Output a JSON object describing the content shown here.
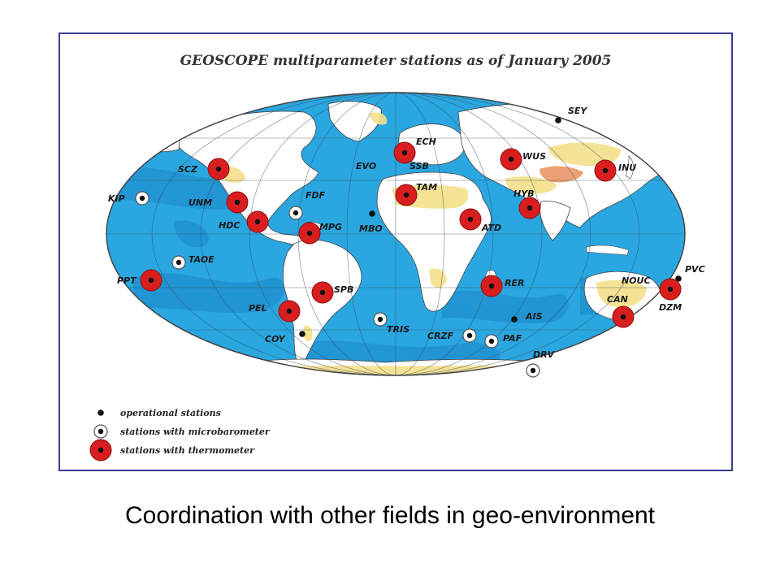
{
  "title": "GEOSCOPE multiparameter stations as of January 2005",
  "caption": "Coordination with other fields in geo-environment",
  "colors": {
    "ocean": "#2aa6e0",
    "land": "#ffffff",
    "desert": "#f4e08a",
    "thermometer": "#d81e1e",
    "operational": "#111111",
    "frame": "#3a3f8f"
  },
  "legend": [
    {
      "type": "operational",
      "label": "operational stations"
    },
    {
      "type": "microbarometer",
      "label": "stations with microbarometer"
    },
    {
      "type": "thermometer",
      "label": "stations with thermometer"
    }
  ],
  "stations": [
    {
      "code": "SCZ",
      "type": "thermometer"
    },
    {
      "code": "KIP",
      "type": "microbarometer"
    },
    {
      "code": "UNM",
      "type": "thermometer"
    },
    {
      "code": "FDF",
      "type": "microbarometer"
    },
    {
      "code": "HDC",
      "type": "thermometer"
    },
    {
      "code": "MPG",
      "type": "thermometer"
    },
    {
      "code": "TAOE",
      "type": "microbarometer"
    },
    {
      "code": "PPT",
      "type": "thermometer"
    },
    {
      "code": "SPB",
      "type": "thermometer"
    },
    {
      "code": "PEL",
      "type": "thermometer"
    },
    {
      "code": "COY",
      "type": "operational"
    },
    {
      "code": "ECH",
      "type": "thermometer"
    },
    {
      "code": "SSB",
      "type": "thermometer"
    },
    {
      "code": "EVO",
      "type": "operational"
    },
    {
      "code": "TAM",
      "type": "thermometer"
    },
    {
      "code": "MBO",
      "type": "operational"
    },
    {
      "code": "ATD",
      "type": "thermometer"
    },
    {
      "code": "WUS",
      "type": "thermometer"
    },
    {
      "code": "HYB",
      "type": "thermometer"
    },
    {
      "code": "INU",
      "type": "thermometer"
    },
    {
      "code": "SEY",
      "type": "operational"
    },
    {
      "code": "RER",
      "type": "thermometer"
    },
    {
      "code": "AIS",
      "type": "operational"
    },
    {
      "code": "TRIS",
      "type": "microbarometer"
    },
    {
      "code": "CRZF",
      "type": "microbarometer"
    },
    {
      "code": "PAF",
      "type": "microbarometer"
    },
    {
      "code": "DRV",
      "type": "microbarometer"
    },
    {
      "code": "NOUC",
      "type": "operational"
    },
    {
      "code": "PVC",
      "type": "operational"
    },
    {
      "code": "DZM",
      "type": "thermometer"
    },
    {
      "code": "CAN",
      "type": "thermometer"
    }
  ]
}
